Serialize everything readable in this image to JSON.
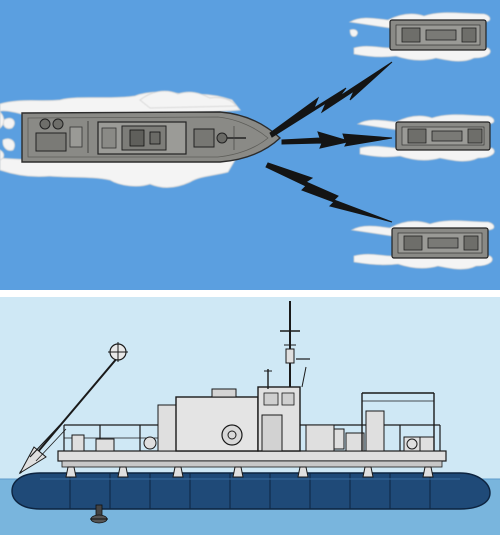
{
  "scene": {
    "top_panel": {
      "view": "plan",
      "background_color": "#5b9fe0",
      "foam_color": "#f4f4f4",
      "hull_color": "#8a8a86",
      "link_color": "#141414",
      "controller_vessel": "controller-ship",
      "remote_craft": [
        "remote-craft-1",
        "remote-craft-2",
        "remote-craft-3"
      ]
    },
    "bottom_panel": {
      "view": "side-elevation",
      "background_color": "#cfe8f5",
      "water_color": "#79b5dd",
      "float_color": "#1f4a78",
      "structure_color": "#dfdfdf",
      "line_color": "#1a1a1a"
    },
    "divider_color": "#ffffff"
  }
}
